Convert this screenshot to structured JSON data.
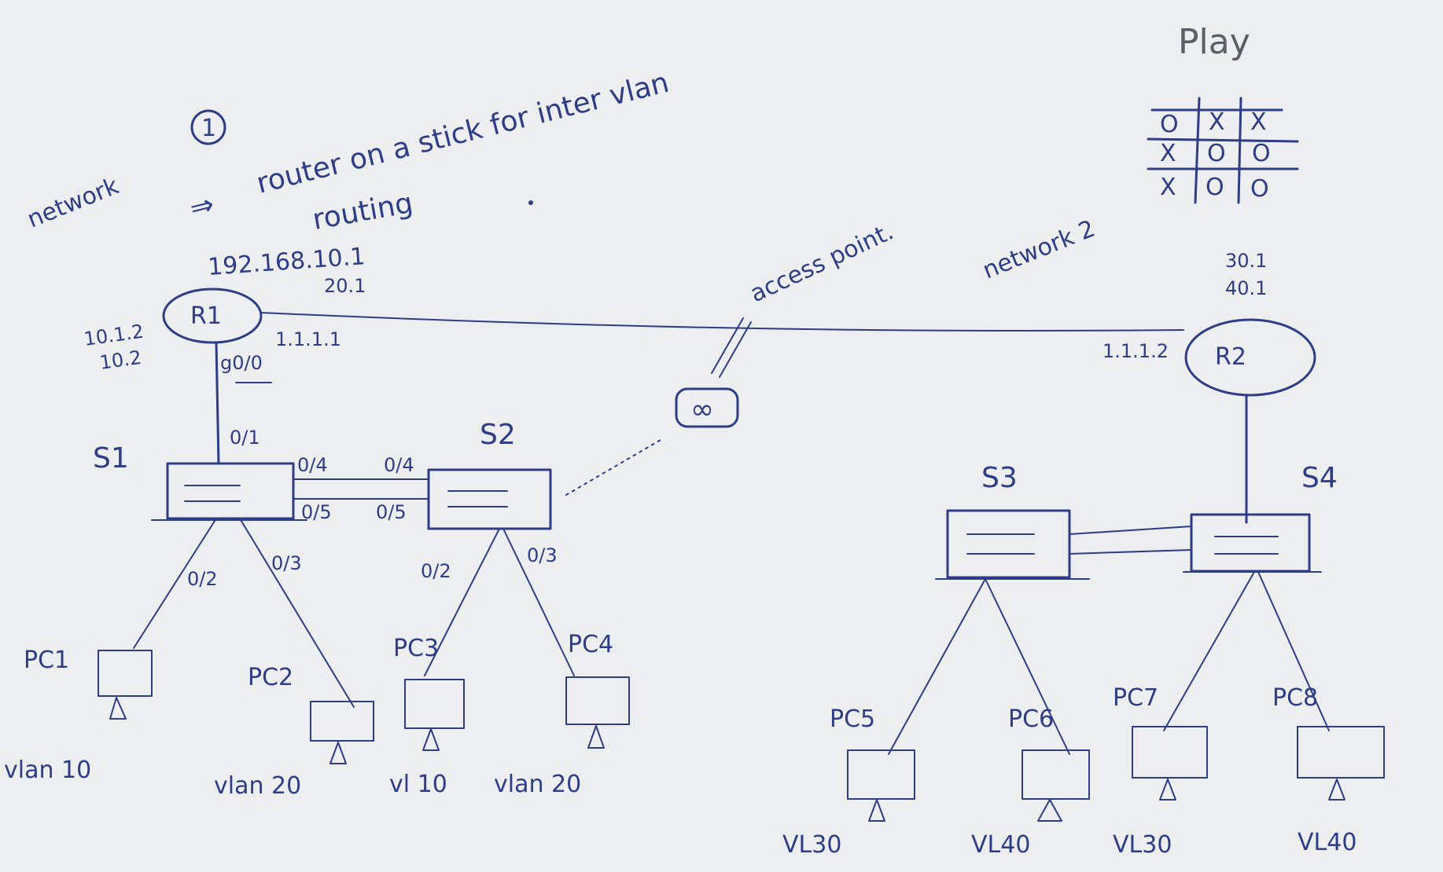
{
  "title": {
    "network1": "network",
    "circled_num": "1",
    "arrow": "⇒",
    "line1": "router on a stick for inter vlan",
    "line2": "routing"
  },
  "play_label": "Play",
  "network2_label": "network 2",
  "access_point_label": "access point.",
  "tictactoe": [
    [
      "O",
      "X",
      "X"
    ],
    [
      "X",
      "O",
      "O"
    ],
    [
      "X",
      "O",
      "O"
    ]
  ],
  "routers": {
    "r1": {
      "name": "R1",
      "ip_top": "192.168.10.1",
      "ip_sub": "20.1",
      "left_ips": [
        "10.1.2",
        "10.2"
      ],
      "wan_ip": "1.1.1.1",
      "port": "g0/0"
    },
    "r2": {
      "name": "R2",
      "ips": [
        "30.1",
        "40.1"
      ],
      "wan_ip": "1.1.1.2"
    }
  },
  "switches": {
    "s1": {
      "name": "S1",
      "ports": {
        "up": "0/1",
        "trunk_top": "0/4",
        "trunk_bottom": "0/5",
        "pc1": "0/2",
        "pc2": "0/3"
      }
    },
    "s2": {
      "name": "S2",
      "ports": {
        "trunk_top": "0/4",
        "trunk_bottom": "0/5",
        "pc3": "0/2",
        "pc4": "0/3"
      }
    },
    "s3": {
      "name": "S3"
    },
    "s4": {
      "name": "S4"
    }
  },
  "pcs": [
    {
      "name": "PC1",
      "vlan": "vlan 10"
    },
    {
      "name": "PC2",
      "vlan": "vlan 20"
    },
    {
      "name": "PC3",
      "vlan": "vl 10"
    },
    {
      "name": "PC4",
      "vlan": "vlan 20"
    },
    {
      "name": "PC5",
      "vlan": "VL30"
    },
    {
      "name": "PC6",
      "vlan": "VL40"
    },
    {
      "name": "PC7",
      "vlan": "VL30"
    },
    {
      "name": "PC8",
      "vlan": "VL40"
    }
  ],
  "ap_symbol": "∞"
}
